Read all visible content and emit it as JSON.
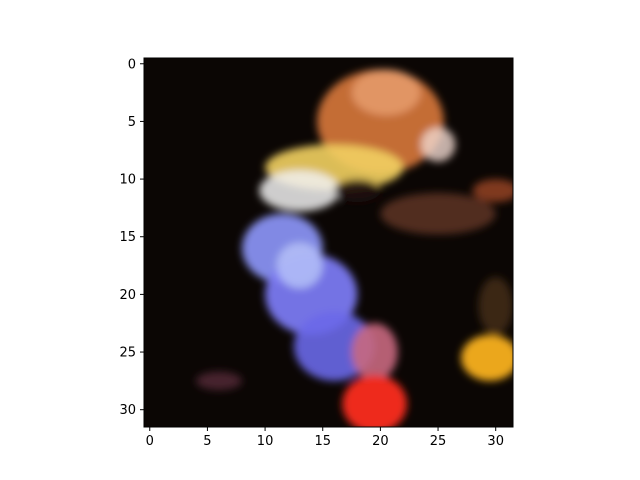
{
  "chart_data": {
    "type": "heatmap",
    "title": "",
    "xlabel": "",
    "ylabel": "",
    "image_rows": 32,
    "image_cols": 32,
    "xlim": [
      -0.5,
      31.5
    ],
    "ylim": [
      31.5,
      -0.5
    ],
    "x_ticks": [
      0,
      5,
      10,
      15,
      20,
      25,
      30
    ],
    "y_ticks": [
      0,
      5,
      10,
      15,
      20,
      25,
      30
    ],
    "x_tick_labels": [
      "0",
      "5",
      "10",
      "15",
      "20",
      "25",
      "30"
    ],
    "y_tick_labels": [
      "0",
      "5",
      "10",
      "15",
      "20",
      "25",
      "30"
    ],
    "background_color": "#0b0604",
    "blobs": [
      {
        "name": "orange-crest",
        "cx": 20,
        "cy": 5,
        "rx": 5.5,
        "ry": 4.5,
        "color": "#d8783a",
        "opacity": 0.9
      },
      {
        "name": "crest-highlight",
        "cx": 20.5,
        "cy": 2.5,
        "rx": 3,
        "ry": 2,
        "color": "#e8a070",
        "opacity": 0.8
      },
      {
        "name": "yellow-beak",
        "cx": 16,
        "cy": 9,
        "rx": 6,
        "ry": 2,
        "color": "#f2d060",
        "opacity": 0.9
      },
      {
        "name": "white-cheek",
        "cx": 13,
        "cy": 11,
        "rx": 3.5,
        "ry": 1.8,
        "color": "#f0f0f0",
        "opacity": 0.85
      },
      {
        "name": "pale-edge",
        "cx": 25,
        "cy": 7,
        "rx": 1.5,
        "ry": 1.5,
        "color": "#f0d8d0",
        "opacity": 0.8
      },
      {
        "name": "dark-eye",
        "cx": 18,
        "cy": 11,
        "rx": 2,
        "ry": 1,
        "color": "#201010",
        "opacity": 0.9
      },
      {
        "name": "brown-wing",
        "cx": 25,
        "cy": 13,
        "rx": 5,
        "ry": 1.8,
        "color": "#6a3a2a",
        "opacity": 0.75
      },
      {
        "name": "blue-neck-upper",
        "cx": 11.5,
        "cy": 16,
        "rx": 3.5,
        "ry": 3,
        "color": "#8890f0",
        "opacity": 0.95
      },
      {
        "name": "blue-neck-mid",
        "cx": 14,
        "cy": 20,
        "rx": 4,
        "ry": 3.5,
        "color": "#7a78f0",
        "opacity": 0.95
      },
      {
        "name": "blue-neck-lower",
        "cx": 16,
        "cy": 24.5,
        "rx": 3.5,
        "ry": 3,
        "color": "#6a68e8",
        "opacity": 0.9
      },
      {
        "name": "light-blue-patch",
        "cx": 13,
        "cy": 17.5,
        "rx": 2,
        "ry": 2,
        "color": "#b8c4f8",
        "opacity": 0.8
      },
      {
        "name": "pink-wattle",
        "cx": 19.5,
        "cy": 25,
        "rx": 2,
        "ry": 2.5,
        "color": "#c86880",
        "opacity": 0.9
      },
      {
        "name": "red-wattle",
        "cx": 19.5,
        "cy": 29.5,
        "rx": 2.8,
        "ry": 2.5,
        "color": "#ee2c1c",
        "opacity": 1.0
      },
      {
        "name": "yellow-fruit",
        "cx": 29.5,
        "cy": 25.5,
        "rx": 2.5,
        "ry": 2,
        "color": "#f8b020",
        "opacity": 0.95
      },
      {
        "name": "orange-leaf",
        "cx": 30,
        "cy": 11,
        "rx": 2,
        "ry": 1,
        "color": "#b0502a",
        "opacity": 0.7
      },
      {
        "name": "brown-branch",
        "cx": 30,
        "cy": 21,
        "rx": 1.5,
        "ry": 2.5,
        "color": "#5a3a20",
        "opacity": 0.6
      },
      {
        "name": "dark-branch",
        "cx": 6,
        "cy": 27.5,
        "rx": 2,
        "ry": 0.8,
        "color": "#603040",
        "opacity": 0.7
      }
    ]
  }
}
